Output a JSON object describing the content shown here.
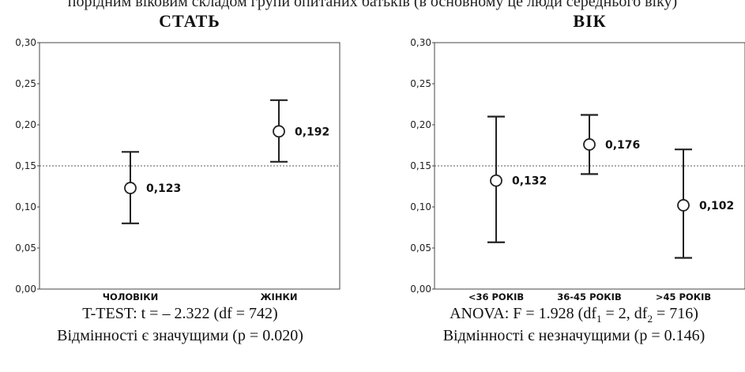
{
  "header": {
    "caption": "порідним віковим складом групи опитаних батьків (в основному це люди середнього віку)"
  },
  "reference_line": 0.15,
  "chart_data": [
    {
      "type": "errorbar",
      "title": "СТАТЬ",
      "ylim": [
        0,
        0.3
      ],
      "yticks": [
        "0,00",
        "0,05",
        "0,10",
        "0,15",
        "0,20",
        "0,25",
        "0,30"
      ],
      "categories": [
        "ЧОЛОВІКИ",
        "ЖІНКИ"
      ],
      "values": [
        0.123,
        0.192
      ],
      "value_labels": [
        "0,123",
        "0,192"
      ],
      "lower": [
        0.08,
        0.155
      ],
      "upper": [
        0.167,
        0.23
      ],
      "grid": false
    },
    {
      "type": "errorbar",
      "title": "ВІК",
      "ylim": [
        0,
        0.3
      ],
      "yticks": [
        "0,00",
        "0,05",
        "0,10",
        "0,15",
        "0,20",
        "0,25",
        "0,30"
      ],
      "categories": [
        "<36 РОКІВ",
        "36-45 РОКІВ",
        ">45 РОКІВ"
      ],
      "values": [
        0.132,
        0.176,
        0.102
      ],
      "value_labels": [
        "0,132",
        "0,176",
        "0,102"
      ],
      "lower": [
        0.057,
        0.14,
        0.038
      ],
      "upper": [
        0.21,
        0.212,
        0.17
      ],
      "grid": false
    }
  ],
  "stats": {
    "left_test": "T-TEST: t = – 2.322 (df = 742)",
    "left_result": "Відмінності є значущими  (p = 0.020)",
    "right_anova_pre": "ANOVA: F = 1.928 (df",
    "right_sub1": "1",
    "right_mid": " = 2, df",
    "right_sub2": "2",
    "right_post": " = 716)",
    "right_result": "Відмінності є незначущими (p = 0.146)"
  }
}
